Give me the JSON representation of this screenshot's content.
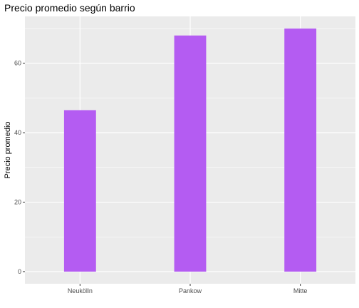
{
  "chart_data": {
    "type": "bar",
    "title": "Precio promedio según barrio",
    "xlabel": "",
    "ylabel": "Precio promedio",
    "categories": [
      "Neukölln",
      "Pankow",
      "Mitte"
    ],
    "values": [
      46.5,
      68,
      70
    ],
    "ylim": [
      -3.5,
      73.5
    ],
    "yticks": [
      0,
      20,
      40,
      60
    ],
    "grid": true,
    "colors": {
      "bar": "#b45cf2",
      "panel": "#ebebeb",
      "grid": "#ffffff",
      "tick": "#4d4d4d"
    }
  }
}
